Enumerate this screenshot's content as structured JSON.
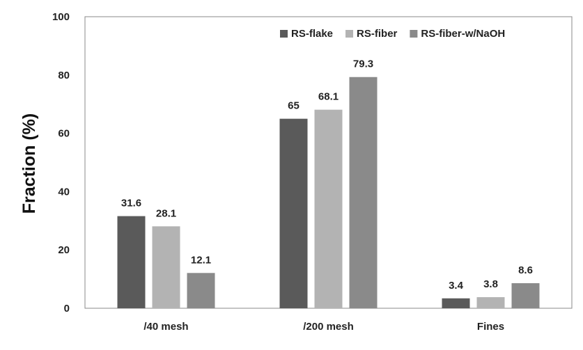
{
  "chart_data": {
    "type": "bar",
    "title": "",
    "xlabel": "",
    "ylabel": "Fraction (%)",
    "ylim": [
      0,
      100
    ],
    "yticks": [
      0,
      20,
      40,
      60,
      80,
      100
    ],
    "grid": false,
    "legend_position": "top-right",
    "categories": [
      "/40 mesh",
      "/200 mesh",
      "Fines"
    ],
    "series": [
      {
        "name": "RS-flake",
        "color": "#5a5a5a",
        "values": [
          31.6,
          65,
          3.4
        ],
        "labels": [
          "31.6",
          "65",
          "3.4"
        ]
      },
      {
        "name": "RS-fiber",
        "color": "#b3b3b3",
        "values": [
          28.1,
          68.1,
          3.8
        ],
        "labels": [
          "28.1",
          "68.1",
          "3.8"
        ]
      },
      {
        "name": "RS-fiber-w/NaOH",
        "color": "#8a8a8a",
        "values": [
          12.1,
          79.3,
          8.6
        ],
        "labels": [
          "12.1",
          "79.3",
          "8.6"
        ]
      }
    ]
  }
}
